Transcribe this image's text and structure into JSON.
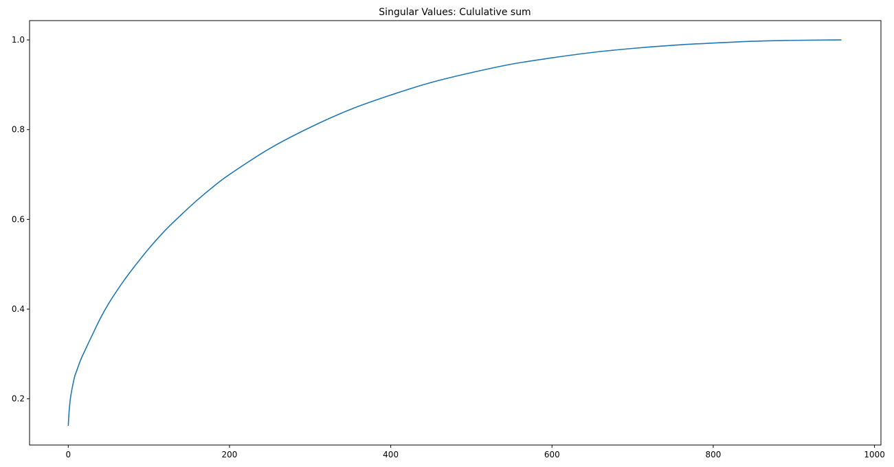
{
  "chart_data": {
    "type": "line",
    "title": "Singular Values: Cululative sum",
    "xlabel": "",
    "ylabel": "",
    "xlim": [
      -48,
      1008
    ],
    "ylim": [
      0.097,
      1.043
    ],
    "x_ticks": [
      0,
      200,
      400,
      600,
      800,
      1000
    ],
    "x_tick_labels": [
      "0",
      "200",
      "400",
      "600",
      "800",
      "1000"
    ],
    "y_ticks": [
      0.2,
      0.4,
      0.6,
      0.8,
      1.0
    ],
    "y_tick_labels": [
      "0.2",
      "0.4",
      "0.6",
      "0.8",
      "1.0"
    ],
    "grid": false,
    "legend": "none",
    "series": [
      {
        "color": "#1f77b4",
        "x": [
          0,
          1,
          2,
          3,
          5,
          8,
          10,
          15,
          20,
          30,
          40,
          50,
          60,
          70,
          80,
          100,
          120,
          140,
          160,
          180,
          200,
          250,
          300,
          350,
          400,
          450,
          500,
          550,
          600,
          650,
          700,
          750,
          800,
          850,
          900,
          959
        ],
        "y": [
          0.14,
          0.17,
          0.19,
          0.205,
          0.225,
          0.25,
          0.26,
          0.285,
          0.305,
          0.343,
          0.38,
          0.412,
          0.44,
          0.466,
          0.49,
          0.535,
          0.575,
          0.61,
          0.643,
          0.673,
          0.7,
          0.758,
          0.805,
          0.845,
          0.877,
          0.905,
          0.927,
          0.946,
          0.96,
          0.972,
          0.981,
          0.988,
          0.993,
          0.997,
          0.999,
          1.0
        ]
      }
    ]
  }
}
